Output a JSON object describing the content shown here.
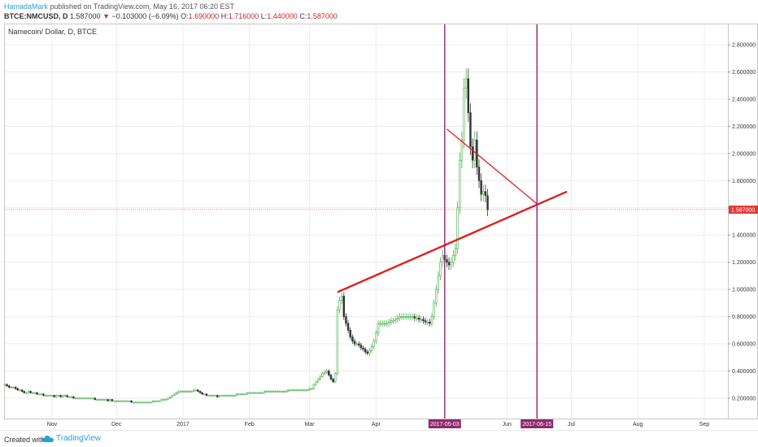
{
  "header": {
    "author": "HamadaMark",
    "published_text": "published on TradingView.com, May 16, 2017 06:20 EST",
    "symbol": "BTCE:NMCUSD, D",
    "last": "1.587000",
    "change": "−0.103000 (−6.09%)",
    "open_label": "O:",
    "open": "1.690000",
    "high_label": "H:",
    "high": "1.716000",
    "low_label": "L:",
    "low": "1.440000",
    "close_label": "C:",
    "close": "1.587000"
  },
  "footer": {
    "created_with": "Created with",
    "brand": "TradingView"
  },
  "colors": {
    "up": "#4caf50",
    "down": "#333333",
    "trend": "#e02020",
    "vline": "#8e2a6e",
    "price_label": "#e53935",
    "grid": "#ececec"
  },
  "chart_data": {
    "type": "candlestick",
    "title": "Namecoin/ Dollar, D, BTCE",
    "y_ticks": [
      0.2,
      0.4,
      0.6,
      0.8,
      1.0,
      1.2,
      1.4,
      1.6,
      1.8,
      2.0,
      2.2,
      2.4,
      2.6,
      2.8
    ],
    "y_tick_labels": [
      "0.200000",
      "0.400000",
      "0.600000",
      "0.800000",
      "1.000000",
      "1.200000",
      "1.400000",
      "1.600000",
      "1.800000",
      "2.000000",
      "2.200000",
      "2.400000",
      "2.600000",
      "2.800000"
    ],
    "ylim": [
      0.05,
      2.95
    ],
    "x_range": [
      "2016-10-10",
      "2017-09-12"
    ],
    "x_ticks": [
      {
        "date": "2016-11-01",
        "label": "Nov"
      },
      {
        "date": "2016-12-01",
        "label": "Dec"
      },
      {
        "date": "2017-01-01",
        "label": "2017"
      },
      {
        "date": "2017-02-01",
        "label": "Feb"
      },
      {
        "date": "2017-03-01",
        "label": "Mar"
      },
      {
        "date": "2017-04-01",
        "label": "Apr"
      },
      {
        "date": "2017-06-01",
        "label": "Jun"
      },
      {
        "date": "2017-07-01",
        "label": "Jul"
      },
      {
        "date": "2017-08-01",
        "label": "Aug"
      },
      {
        "date": "2017-09-01",
        "label": "Sep"
      }
    ],
    "current_price": {
      "value": 1.587,
      "label": "1.587000"
    },
    "vertical_markers": [
      {
        "date": "2017-05-03",
        "label": "2017-05-03"
      },
      {
        "date": "2017-06-15",
        "label": "2017-06-15"
      }
    ],
    "trend_lines": [
      {
        "from": {
          "date": "2017-03-14",
          "price": 0.98
        },
        "to": {
          "date": "2017-06-29",
          "price": 1.72
        }
      },
      {
        "from": {
          "date": "2017-05-04",
          "price": 2.18
        },
        "to": {
          "date": "2017-06-15",
          "price": 1.63
        }
      }
    ],
    "start_date": "2016-10-10",
    "candles": [
      [
        0.3,
        0.3
      ],
      [
        0.3,
        0.29
      ],
      [
        0.29,
        0.28
      ],
      [
        0.28,
        0.28
      ],
      [
        0.28,
        0.28
      ],
      [
        0.28,
        0.27
      ],
      [
        0.27,
        0.26
      ],
      [
        0.26,
        0.26
      ],
      [
        0.26,
        0.25
      ],
      [
        0.25,
        0.24
      ],
      [
        0.24,
        0.24
      ],
      [
        0.24,
        0.25
      ],
      [
        0.25,
        0.24
      ],
      [
        0.24,
        0.24
      ],
      [
        0.24,
        0.24
      ],
      [
        0.24,
        0.23
      ],
      [
        0.23,
        0.23
      ],
      [
        0.23,
        0.23
      ],
      [
        0.23,
        0.22
      ],
      [
        0.22,
        0.22
      ],
      [
        0.22,
        0.22
      ],
      [
        0.22,
        0.22
      ],
      [
        0.22,
        0.22
      ],
      [
        0.22,
        0.21
      ],
      [
        0.21,
        0.22
      ],
      [
        0.22,
        0.22
      ],
      [
        0.22,
        0.21
      ],
      [
        0.21,
        0.22
      ],
      [
        0.22,
        0.22
      ],
      [
        0.22,
        0.21
      ],
      [
        0.21,
        0.21
      ],
      [
        0.21,
        0.21
      ],
      [
        0.21,
        0.2
      ],
      [
        0.2,
        0.2
      ],
      [
        0.2,
        0.2
      ],
      [
        0.2,
        0.2
      ],
      [
        0.2,
        0.2
      ],
      [
        0.2,
        0.2
      ],
      [
        0.2,
        0.2
      ],
      [
        0.2,
        0.2
      ],
      [
        0.2,
        0.2
      ],
      [
        0.2,
        0.2
      ],
      [
        0.2,
        0.19
      ],
      [
        0.19,
        0.19
      ],
      [
        0.19,
        0.19
      ],
      [
        0.19,
        0.19
      ],
      [
        0.19,
        0.19
      ],
      [
        0.19,
        0.19
      ],
      [
        0.19,
        0.18
      ],
      [
        0.18,
        0.19
      ],
      [
        0.19,
        0.18
      ],
      [
        0.18,
        0.18
      ],
      [
        0.18,
        0.18
      ],
      [
        0.18,
        0.18
      ],
      [
        0.18,
        0.18
      ],
      [
        0.18,
        0.18
      ],
      [
        0.18,
        0.18
      ],
      [
        0.18,
        0.18
      ],
      [
        0.18,
        0.18
      ],
      [
        0.18,
        0.17
      ],
      [
        0.17,
        0.17
      ],
      [
        0.17,
        0.17
      ],
      [
        0.17,
        0.17
      ],
      [
        0.17,
        0.17
      ],
      [
        0.17,
        0.17
      ],
      [
        0.17,
        0.17
      ],
      [
        0.17,
        0.17
      ],
      [
        0.17,
        0.17
      ],
      [
        0.17,
        0.17
      ],
      [
        0.17,
        0.18
      ],
      [
        0.18,
        0.18
      ],
      [
        0.18,
        0.18
      ],
      [
        0.18,
        0.18
      ],
      [
        0.18,
        0.19
      ],
      [
        0.19,
        0.19
      ],
      [
        0.19,
        0.19
      ],
      [
        0.19,
        0.2
      ],
      [
        0.2,
        0.21
      ],
      [
        0.21,
        0.22
      ],
      [
        0.22,
        0.23
      ],
      [
        0.23,
        0.24
      ],
      [
        0.24,
        0.25
      ],
      [
        0.25,
        0.25
      ],
      [
        0.25,
        0.25
      ],
      [
        0.25,
        0.25
      ],
      [
        0.25,
        0.25
      ],
      [
        0.25,
        0.25
      ],
      [
        0.25,
        0.25
      ],
      [
        0.25,
        0.26
      ],
      [
        0.26,
        0.26
      ],
      [
        0.26,
        0.25
      ],
      [
        0.25,
        0.24
      ],
      [
        0.24,
        0.23
      ],
      [
        0.23,
        0.23
      ],
      [
        0.23,
        0.22
      ],
      [
        0.22,
        0.22
      ],
      [
        0.22,
        0.22
      ],
      [
        0.22,
        0.22
      ],
      [
        0.22,
        0.22
      ],
      [
        0.22,
        0.21
      ],
      [
        0.21,
        0.22
      ],
      [
        0.22,
        0.22
      ],
      [
        0.22,
        0.22
      ],
      [
        0.22,
        0.22
      ],
      [
        0.22,
        0.22
      ],
      [
        0.22,
        0.22
      ],
      [
        0.22,
        0.22
      ],
      [
        0.22,
        0.22
      ],
      [
        0.22,
        0.23
      ],
      [
        0.23,
        0.23
      ],
      [
        0.23,
        0.23
      ],
      [
        0.23,
        0.23
      ],
      [
        0.23,
        0.23
      ],
      [
        0.23,
        0.24
      ],
      [
        0.24,
        0.24
      ],
      [
        0.24,
        0.24
      ],
      [
        0.24,
        0.24
      ],
      [
        0.24,
        0.24
      ],
      [
        0.24,
        0.24
      ],
      [
        0.24,
        0.24
      ],
      [
        0.24,
        0.24
      ],
      [
        0.24,
        0.25
      ],
      [
        0.25,
        0.25
      ],
      [
        0.25,
        0.25
      ],
      [
        0.25,
        0.25
      ],
      [
        0.25,
        0.25
      ],
      [
        0.25,
        0.25
      ],
      [
        0.25,
        0.25
      ],
      [
        0.25,
        0.25
      ],
      [
        0.25,
        0.25
      ],
      [
        0.25,
        0.25
      ],
      [
        0.25,
        0.25
      ],
      [
        0.25,
        0.26
      ],
      [
        0.26,
        0.26
      ],
      [
        0.26,
        0.26
      ],
      [
        0.26,
        0.26
      ],
      [
        0.26,
        0.26
      ],
      [
        0.26,
        0.26
      ],
      [
        0.26,
        0.26
      ],
      [
        0.26,
        0.26
      ],
      [
        0.26,
        0.26
      ],
      [
        0.26,
        0.26
      ],
      [
        0.26,
        0.27
      ],
      [
        0.27,
        0.27
      ],
      [
        0.27,
        0.3
      ],
      [
        0.3,
        0.32
      ],
      [
        0.32,
        0.34
      ],
      [
        0.34,
        0.36
      ],
      [
        0.36,
        0.38
      ],
      [
        0.38,
        0.39
      ],
      [
        0.39,
        0.4
      ],
      [
        0.4,
        0.37
      ],
      [
        0.37,
        0.34
      ],
      [
        0.34,
        0.32
      ],
      [
        0.32,
        0.38
      ],
      [
        0.38,
        0.85
      ],
      [
        0.85,
        0.92
      ],
      [
        0.92,
        0.95
      ],
      [
        0.95,
        0.8
      ],
      [
        0.8,
        0.75
      ],
      [
        0.75,
        0.7
      ],
      [
        0.7,
        0.65
      ],
      [
        0.65,
        0.62
      ],
      [
        0.62,
        0.6
      ],
      [
        0.6,
        0.6
      ],
      [
        0.6,
        0.59
      ],
      [
        0.59,
        0.57
      ],
      [
        0.57,
        0.56
      ],
      [
        0.56,
        0.54
      ],
      [
        0.54,
        0.53
      ],
      [
        0.53,
        0.55
      ],
      [
        0.55,
        0.58
      ],
      [
        0.58,
        0.62
      ],
      [
        0.62,
        0.68
      ],
      [
        0.68,
        0.75
      ],
      [
        0.75,
        0.75
      ],
      [
        0.75,
        0.75
      ],
      [
        0.75,
        0.75
      ],
      [
        0.75,
        0.75
      ],
      [
        0.75,
        0.76
      ],
      [
        0.76,
        0.77
      ],
      [
        0.77,
        0.77
      ],
      [
        0.77,
        0.78
      ],
      [
        0.78,
        0.79
      ],
      [
        0.79,
        0.8
      ],
      [
        0.8,
        0.8
      ],
      [
        0.8,
        0.8
      ],
      [
        0.8,
        0.8
      ],
      [
        0.8,
        0.8
      ],
      [
        0.8,
        0.8
      ],
      [
        0.8,
        0.8
      ],
      [
        0.8,
        0.79
      ],
      [
        0.79,
        0.79
      ],
      [
        0.79,
        0.78
      ],
      [
        0.78,
        0.78
      ],
      [
        0.78,
        0.77
      ],
      [
        0.77,
        0.76
      ],
      [
        0.76,
        0.76
      ],
      [
        0.76,
        0.75
      ],
      [
        0.75,
        0.8
      ],
      [
        0.8,
        0.9
      ],
      [
        0.9,
        1.0
      ],
      [
        1.0,
        1.1
      ],
      [
        1.1,
        1.2
      ],
      [
        1.2,
        1.25
      ],
      [
        1.25,
        1.22
      ],
      [
        1.22,
        1.2
      ],
      [
        1.2,
        1.18
      ],
      [
        1.18,
        1.2
      ],
      [
        1.2,
        1.25
      ],
      [
        1.25,
        1.3
      ],
      [
        1.3,
        1.6
      ],
      [
        1.6,
        1.95
      ],
      [
        1.95,
        2.1
      ],
      [
        2.1,
        2.48
      ],
      [
        2.48,
        2.55
      ],
      [
        2.55,
        2.3
      ],
      [
        2.3,
        2.05
      ],
      [
        2.05,
        1.95
      ],
      [
        1.95,
        2.1
      ],
      [
        2.1,
        1.9
      ],
      [
        1.9,
        1.8
      ],
      [
        1.8,
        1.7
      ],
      [
        1.7,
        1.72
      ],
      [
        1.72,
        1.69
      ],
      [
        1.69,
        1.587
      ]
    ]
  }
}
